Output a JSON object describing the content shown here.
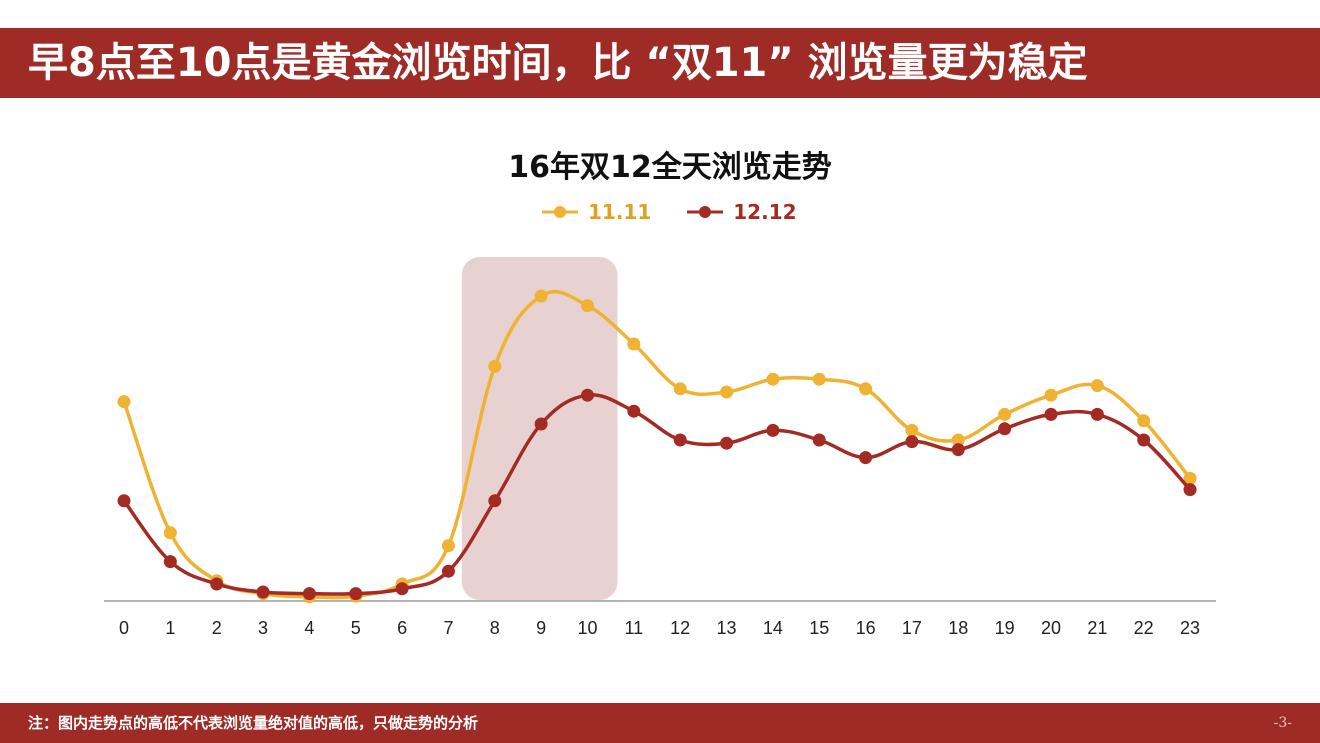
{
  "header": {
    "title": "早8点至10点是黄金浏览时间，比 “双11” 浏览量更为稳定"
  },
  "chart_data": {
    "type": "line",
    "title": "16年双12全天浏览走势",
    "xlabel": "",
    "ylabel": "",
    "categories": [
      "0",
      "1",
      "2",
      "3",
      "4",
      "5",
      "6",
      "7",
      "8",
      "9",
      "10",
      "11",
      "12",
      "13",
      "14",
      "15",
      "16",
      "17",
      "18",
      "19",
      "20",
      "21",
      "22",
      "23"
    ],
    "series": [
      {
        "name": "11.11",
        "color": "#f0b232",
        "values": [
          62,
          21,
          6,
          2,
          1,
          1.2,
          5,
          17,
          73,
          95,
          92,
          80,
          66,
          65,
          69,
          69,
          66,
          53,
          50,
          58,
          64,
          67,
          56,
          38
        ]
      },
      {
        "name": "12.12",
        "color": "#a32b24",
        "values": [
          31,
          12,
          5,
          2.5,
          2,
          2,
          3.5,
          9,
          31,
          55,
          64,
          59,
          50,
          49,
          53,
          50,
          44.5,
          49.5,
          47,
          53.5,
          58,
          58,
          50,
          34.5
        ]
      }
    ],
    "highlight_range": [
      "8",
      "10"
    ],
    "highlight_color": "#e8d2d1",
    "grid": false,
    "legend_position": "top-center",
    "y_axis_labels": false
  },
  "footer": {
    "note": "注：图内走势点的高低不代表浏览量绝对值的高低，只做走势的分析",
    "page": "-3-"
  }
}
